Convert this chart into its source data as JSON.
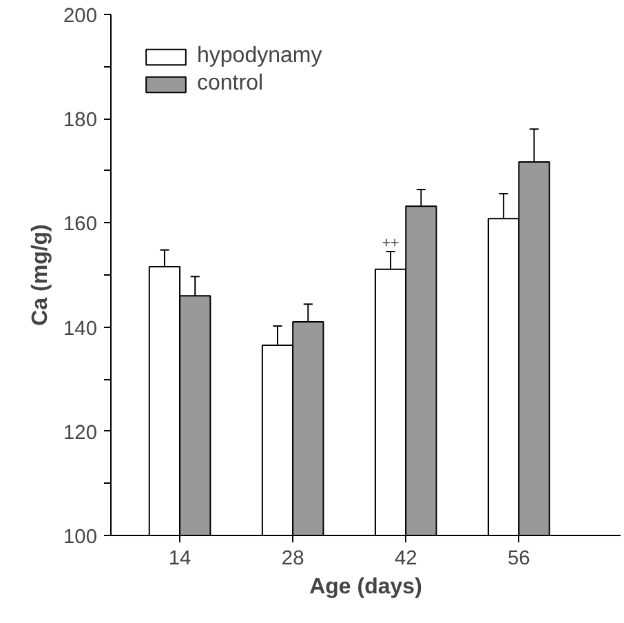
{
  "chart_data": {
    "type": "bar",
    "xlabel": "Age (days)",
    "ylabel": "Ca (mg/g)",
    "categories": [
      "14",
      "28",
      "42",
      "56"
    ],
    "series": [
      {
        "name": "hypodynamy",
        "color": "#ffffff",
        "values": [
          151.6,
          136.5,
          151.1,
          160.8
        ],
        "errors": [
          [
            151.6,
            154.8
          ],
          [
            136.5,
            140.2
          ],
          [
            151.1,
            154.5
          ],
          [
            160.8,
            165.6
          ]
        ]
      },
      {
        "name": "control",
        "color": "#999999",
        "values": [
          146.0,
          141.0,
          163.2,
          171.7
        ],
        "errors": [
          [
            146.0,
            149.7
          ],
          [
            141.0,
            144.4
          ],
          [
            163.2,
            166.4
          ],
          [
            171.7,
            178.0
          ]
        ]
      }
    ],
    "ylim": [
      100,
      200
    ],
    "yticks": [
      100,
      {
        "value": 110,
        "label": null
      },
      120,
      {
        "value": 130,
        "label": null
      },
      140,
      {
        "value": 150,
        "label": null
      },
      160,
      {
        "value": 170,
        "label": null
      },
      180,
      {
        "value": 190,
        "label": null
      },
      200
    ],
    "annotations": [
      {
        "text": "++",
        "x": "42",
        "y": 154.5
      }
    ],
    "legend": "top left",
    "grid": false
  }
}
